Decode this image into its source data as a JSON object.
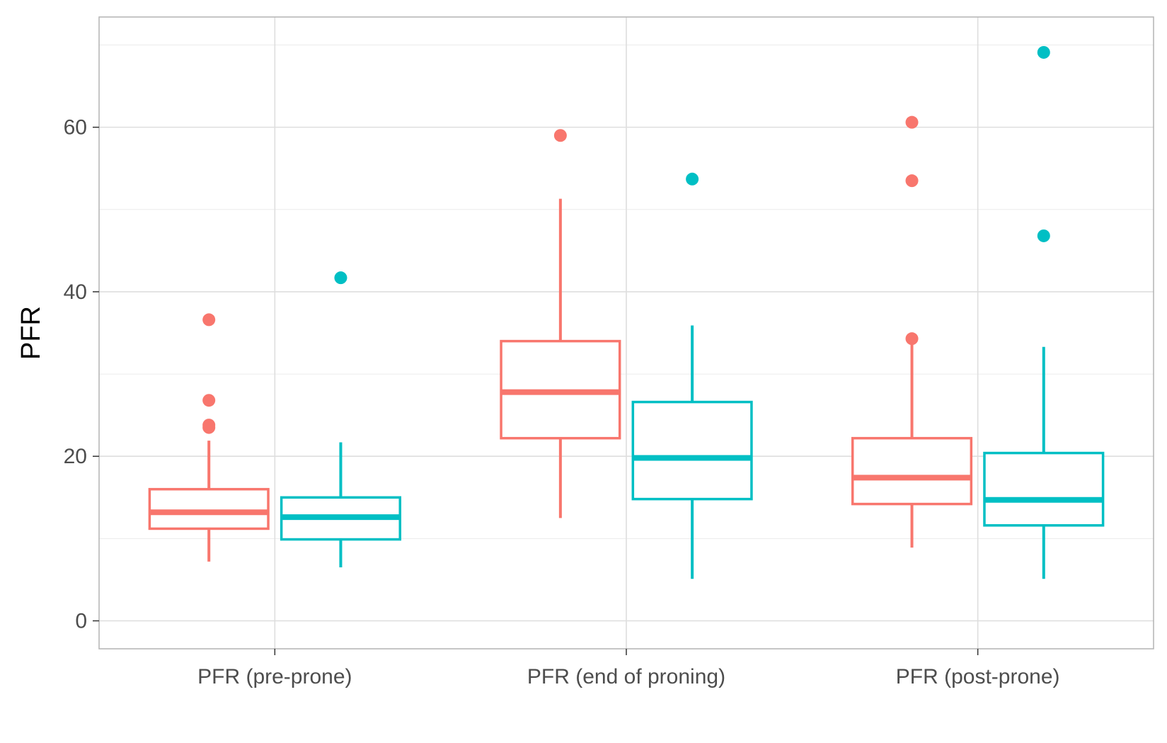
{
  "chart_data": {
    "type": "box",
    "title": "",
    "xlabel": "",
    "ylabel": "PFR",
    "categories": [
      "PFR (pre-prone)",
      "PFR (end of proning)",
      "PFR (post-prone)"
    ],
    "ylim": [
      -3.4,
      73.4
    ],
    "yticks": [
      0,
      20,
      40,
      60
    ],
    "grid": true,
    "legend": "none",
    "series": [
      {
        "color": "#F8766D",
        "boxes": [
          {
            "min": 7.2,
            "q1": 11.2,
            "median": 13.2,
            "q3": 16.0,
            "max": 21.9,
            "outliers": [
              23.5,
              23.8,
              26.8,
              36.6
            ]
          },
          {
            "min": 12.5,
            "q1": 22.2,
            "median": 27.8,
            "q3": 34.0,
            "max": 51.3,
            "outliers": [
              59.0
            ]
          },
          {
            "min": 8.9,
            "q1": 14.2,
            "median": 17.4,
            "q3": 22.2,
            "max": 33.8,
            "outliers": [
              34.3,
              53.5,
              60.6
            ]
          }
        ]
      },
      {
        "color": "#00BFC4",
        "boxes": [
          {
            "min": 6.5,
            "q1": 9.9,
            "median": 12.6,
            "q3": 15.0,
            "max": 21.7,
            "outliers": [
              41.7
            ]
          },
          {
            "min": 5.1,
            "q1": 14.8,
            "median": 19.8,
            "q3": 26.6,
            "max": 35.9,
            "outliers": [
              53.7
            ]
          },
          {
            "min": 5.1,
            "q1": 11.6,
            "median": 14.7,
            "q3": 20.4,
            "max": 33.3,
            "outliers": [
              46.8,
              69.1
            ]
          }
        ]
      }
    ]
  }
}
